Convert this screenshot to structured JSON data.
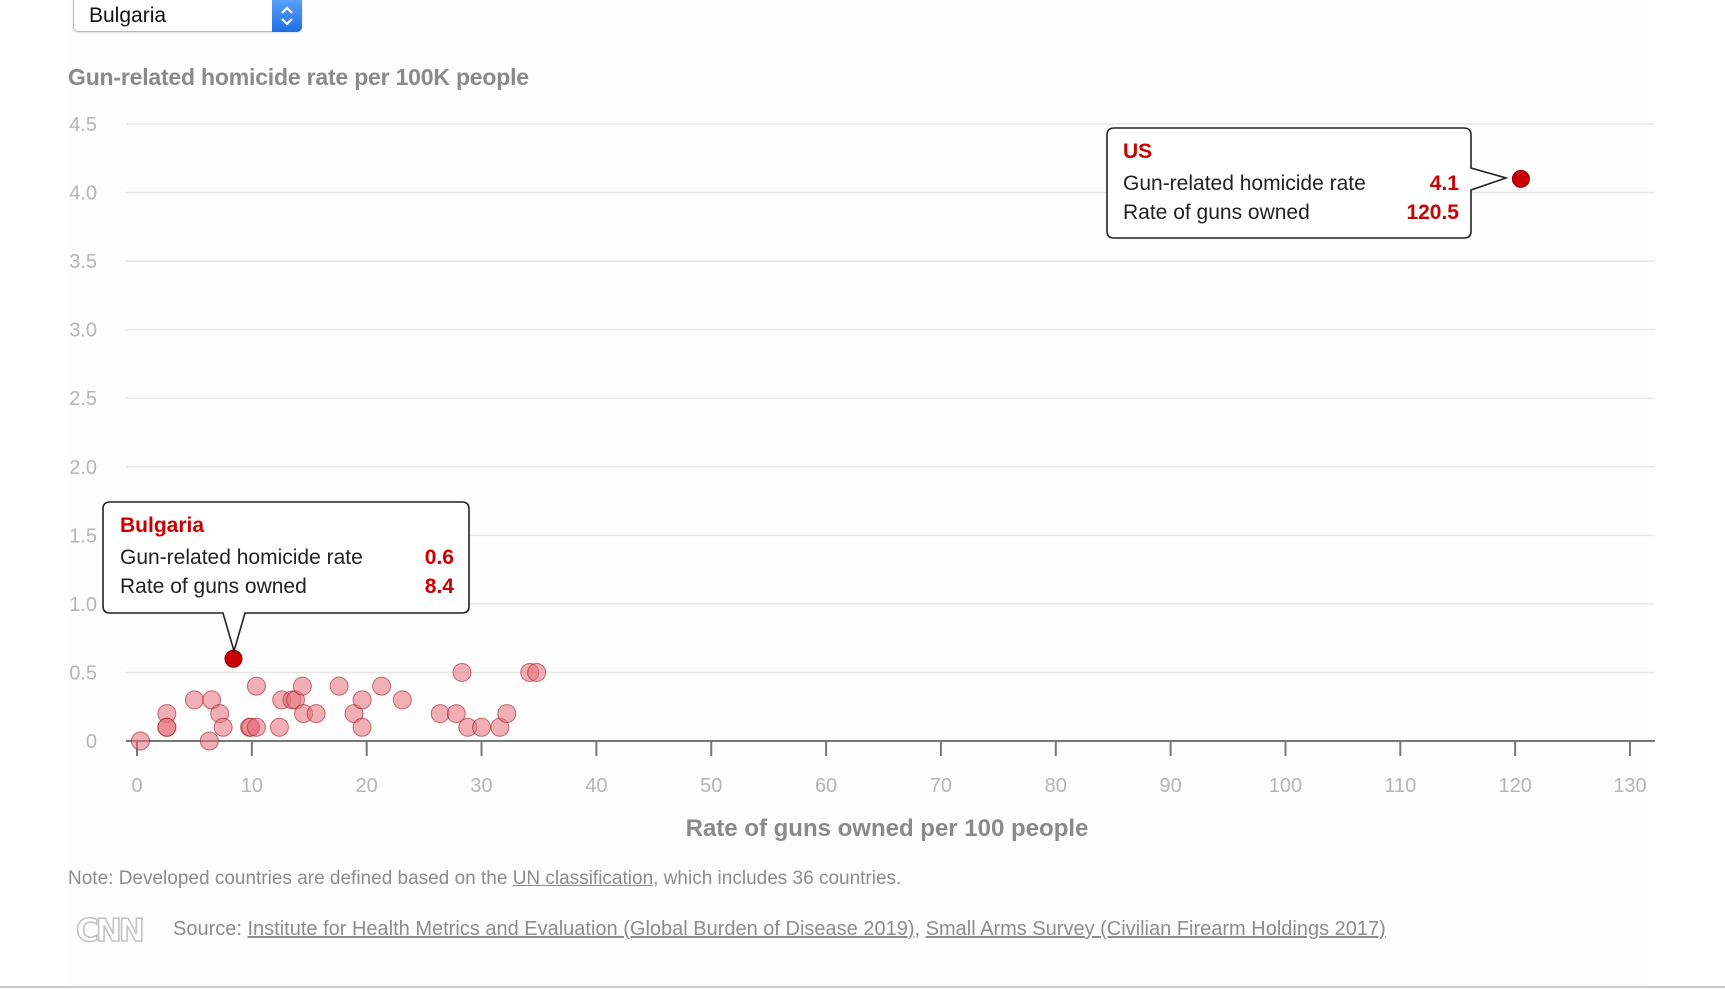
{
  "selector": {
    "value": "Bulgaria"
  },
  "chart_data": {
    "type": "scatter",
    "title": "Gun-related homicide rate per 100K people",
    "xlabel": "Rate of guns owned per 100 people",
    "ylabel": "Gun-related homicide rate per 100K people",
    "xlim": [
      0,
      130
    ],
    "ylim": [
      0,
      4.5
    ],
    "x_ticks": [
      0,
      10,
      20,
      30,
      40,
      50,
      60,
      70,
      80,
      90,
      100,
      110,
      120,
      130
    ],
    "y_ticks": [
      0,
      0.5,
      1.0,
      1.5,
      2.0,
      2.5,
      3.0,
      3.5,
      4.0,
      4.5
    ],
    "y_tick_labels": [
      "0",
      "0.5",
      "1.0",
      "1.5",
      "2.0",
      "2.5",
      "3.0",
      "3.5",
      "4.0",
      "4.5"
    ],
    "grid": true,
    "series": [
      {
        "name": "Developed countries",
        "color": "#e8707a",
        "points": [
          {
            "x": 0.3,
            "y": 0.0
          },
          {
            "x": 2.6,
            "y": 0.2
          },
          {
            "x": 2.6,
            "y": 0.1
          },
          {
            "x": 2.6,
            "y": 0.1
          },
          {
            "x": 5.0,
            "y": 0.3
          },
          {
            "x": 6.3,
            "y": 0.0
          },
          {
            "x": 6.5,
            "y": 0.3
          },
          {
            "x": 7.2,
            "y": 0.2
          },
          {
            "x": 7.5,
            "y": 0.1
          },
          {
            "x": 9.8,
            "y": 0.1
          },
          {
            "x": 9.9,
            "y": 0.1
          },
          {
            "x": 10.4,
            "y": 0.4
          },
          {
            "x": 10.4,
            "y": 0.1
          },
          {
            "x": 12.4,
            "y": 0.1
          },
          {
            "x": 12.6,
            "y": 0.3
          },
          {
            "x": 13.5,
            "y": 0.3
          },
          {
            "x": 13.8,
            "y": 0.3
          },
          {
            "x": 14.4,
            "y": 0.4
          },
          {
            "x": 14.5,
            "y": 0.2
          },
          {
            "x": 15.6,
            "y": 0.2
          },
          {
            "x": 17.6,
            "y": 0.4
          },
          {
            "x": 18.9,
            "y": 0.2
          },
          {
            "x": 19.6,
            "y": 0.3
          },
          {
            "x": 19.6,
            "y": 0.1
          },
          {
            "x": 21.3,
            "y": 0.4
          },
          {
            "x": 23.1,
            "y": 0.3
          },
          {
            "x": 26.4,
            "y": 0.2
          },
          {
            "x": 27.8,
            "y": 0.2
          },
          {
            "x": 28.3,
            "y": 0.5
          },
          {
            "x": 28.8,
            "y": 0.1
          },
          {
            "x": 30.0,
            "y": 0.1
          },
          {
            "x": 31.6,
            "y": 0.1
          },
          {
            "x": 32.2,
            "y": 0.2
          },
          {
            "x": 34.2,
            "y": 0.5
          },
          {
            "x": 34.8,
            "y": 0.5
          }
        ]
      }
    ],
    "highlighted": [
      {
        "name": "Bulgaria",
        "x": 8.4,
        "y": 0.6,
        "color": "#cc0000"
      },
      {
        "name": "US",
        "x": 120.5,
        "y": 4.1,
        "color": "#cc0000"
      }
    ],
    "annotations": [
      {
        "name": "Bulgaria",
        "rows": [
          {
            "label": "Gun-related homicide rate",
            "value": "0.6"
          },
          {
            "label": "Rate of guns owned",
            "value": "8.4"
          }
        ]
      },
      {
        "name": "US",
        "rows": [
          {
            "label": "Gun-related homicide rate",
            "value": "4.1"
          },
          {
            "label": "Rate of guns owned",
            "value": "120.5"
          }
        ]
      }
    ]
  },
  "note": {
    "prefix": "Note: Developed countries are defined based on the ",
    "link": "UN classification",
    "suffix": ", which includes 36 countries."
  },
  "source": {
    "prefix": "Source: ",
    "link1": "Institute for Health Metrics and Evaluation (Global Burden of Disease 2019)",
    "separator": ", ",
    "link2": "Small Arms Survey (Civilian Firearm Holdings 2017)"
  },
  "logo": {
    "text": "CNN"
  }
}
